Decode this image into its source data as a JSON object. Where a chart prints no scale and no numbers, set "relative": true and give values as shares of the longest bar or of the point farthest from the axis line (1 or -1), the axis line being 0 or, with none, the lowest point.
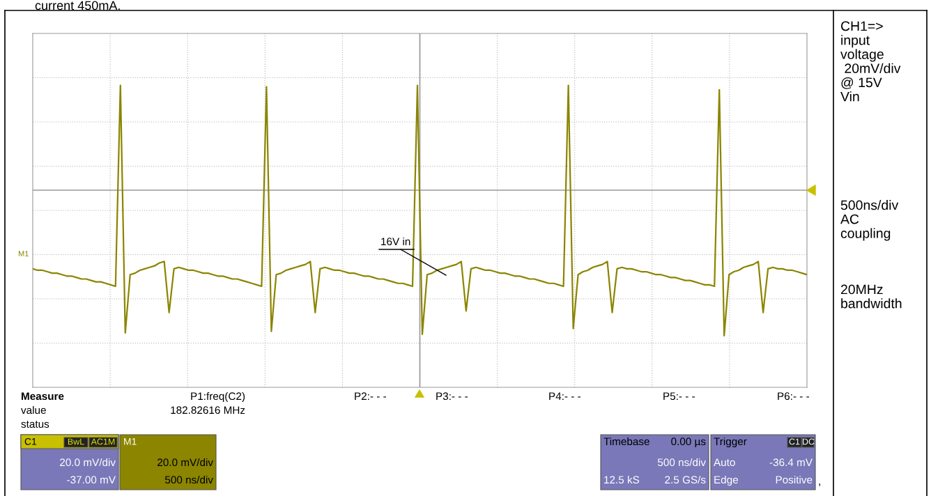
{
  "chart_data": {
    "type": "line",
    "relative": true,
    "color": "#8b8500",
    "grid": true,
    "tick_labels": false,
    "marker": "none",
    "line_style": "solid",
    "categories": [
      null,
      null,
      null,
      null,
      null,
      null,
      null,
      null,
      null,
      null,
      null,
      null,
      null,
      null,
      null,
      null,
      null,
      null,
      null,
      null,
      null,
      null,
      null,
      null,
      null,
      null,
      null,
      null,
      null,
      null,
      null,
      null,
      null,
      null,
      null,
      null,
      null,
      null,
      null,
      null,
      null,
      null,
      null,
      null,
      null,
      null,
      null,
      null,
      null,
      null,
      null,
      null,
      null,
      null,
      null,
      null,
      null,
      null,
      null,
      null,
      null,
      null,
      null,
      null,
      null,
      null,
      null,
      null,
      null,
      null,
      null,
      null,
      null,
      null,
      null,
      null,
      null,
      null,
      null,
      null,
      null,
      null,
      null,
      null,
      null,
      null,
      null,
      null,
      null,
      null,
      null,
      null,
      null,
      null,
      null,
      null,
      null,
      null,
      null,
      null,
      null,
      null,
      null,
      null,
      null,
      null,
      null,
      null,
      null,
      null,
      null,
      null,
      null,
      null,
      null,
      null,
      null,
      null,
      null,
      null,
      null,
      null,
      null,
      null,
      null,
      null,
      null,
      null,
      null,
      null,
      null,
      null,
      null,
      null,
      null,
      null,
      null,
      null,
      null,
      null,
      null,
      null,
      null,
      null,
      null,
      null,
      null,
      null,
      null,
      null,
      null,
      null,
      null,
      null,
      null,
      null,
      null,
      null,
      null,
      null
    ],
    "values": [
      -0.54,
      -0.55,
      -0.55,
      -0.56,
      -0.57,
      -0.57,
      -0.58,
      -0.59,
      -0.59,
      -0.6,
      -0.61,
      -0.61,
      -0.62,
      -0.63,
      -0.63,
      -0.64,
      -0.65,
      -0.66,
      0.72,
      -0.98,
      -0.58,
      -0.57,
      -0.55,
      -0.54,
      -0.53,
      -0.52,
      -0.5,
      -0.49,
      -0.84,
      -0.54,
      -0.53,
      -0.54,
      -0.55,
      -0.55,
      -0.56,
      -0.57,
      -0.57,
      -0.58,
      -0.59,
      -0.59,
      -0.6,
      -0.61,
      -0.61,
      -0.62,
      -0.63,
      -0.64,
      -0.65,
      -0.66,
      0.71,
      -0.97,
      -0.58,
      -0.57,
      -0.55,
      -0.54,
      -0.53,
      -0.52,
      -0.51,
      -0.49,
      -0.84,
      -0.54,
      -0.53,
      -0.54,
      -0.55,
      -0.55,
      -0.56,
      -0.57,
      -0.57,
      -0.58,
      -0.59,
      -0.59,
      -0.6,
      -0.61,
      -0.61,
      -0.62,
      -0.63,
      -0.64,
      -0.64,
      -0.65,
      -0.66,
      0.72,
      -0.99,
      -0.58,
      -0.57,
      -0.55,
      -0.54,
      -0.53,
      -0.52,
      -0.51,
      -0.49,
      -0.83,
      -0.54,
      -0.53,
      -0.54,
      -0.55,
      -0.55,
      -0.56,
      -0.57,
      -0.57,
      -0.58,
      -0.59,
      -0.59,
      -0.6,
      -0.61,
      -0.61,
      -0.62,
      -0.63,
      -0.64,
      -0.64,
      -0.65,
      -0.66,
      0.72,
      -0.95,
      -0.58,
      -0.56,
      -0.55,
      -0.53,
      -0.52,
      -0.51,
      -0.49,
      -0.84,
      -0.54,
      -0.53,
      -0.54,
      -0.54,
      -0.55,
      -0.56,
      -0.56,
      -0.57,
      -0.58,
      -0.58,
      -0.59,
      -0.6,
      -0.6,
      -0.61,
      -0.62,
      -0.62,
      -0.63,
      -0.64,
      -0.65,
      -0.65,
      -0.66,
      0.69,
      -1.0,
      -0.58,
      -0.56,
      -0.55,
      -0.53,
      -0.52,
      -0.51,
      -0.49,
      -0.84,
      -0.54,
      -0.53,
      -0.54,
      -0.54,
      -0.55,
      -0.55,
      -0.56,
      -0.57,
      -0.58
    ],
    "annotations": [
      "current 450mA.",
      "CH1=>\ninput\nvoltage\n 20mV/div\n@ 15V\nVin",
      "500ns/div\nAC\ncoupling",
      "20MHz\nbandwidth",
      "M1",
      "16V in",
      "Measure",
      "P1:freq(C2)",
      "P2:- - -",
      "P3:- - -",
      "P4:- - -",
      "P5:- - -",
      "P6:- - -",
      "value",
      "182.82616 MHz",
      "status",
      "C1",
      "BwL",
      "AC1M",
      "20.0 mV/div",
      "-37.00 mV",
      "M1",
      "20.0 mV/div",
      "500 ns/div",
      "Timebase",
      "0.00 µs",
      "500 ns/div",
      "12.5 kS",
      "2.5 GS/s",
      "Trigger",
      "C1",
      "DC",
      "Auto",
      "-36.4 mV",
      "Edge",
      "Positive",
      ","
    ]
  }
}
